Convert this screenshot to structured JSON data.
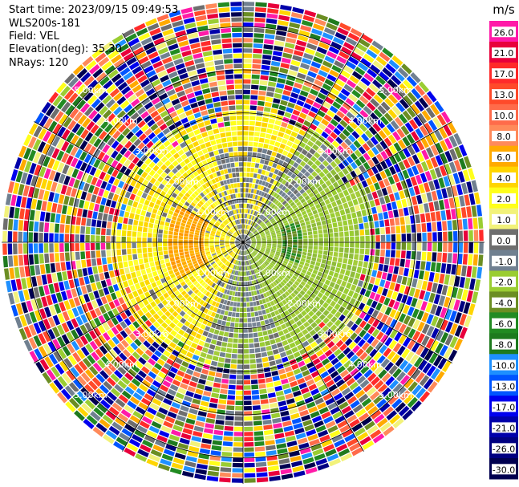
{
  "chart_data": {
    "type": "polar-ppi",
    "info": {
      "start_time": "Start time: 2023/09/15 09:49:53",
      "instrument": "WLS200s-181",
      "field": "Field: VEL",
      "elevation": "Elevation(deg): 35.30",
      "nrays": "NRays: 120"
    },
    "rings": [
      {
        "value": 1,
        "label": "1.00km"
      },
      {
        "value": 2,
        "label": "2.00km"
      },
      {
        "value": 3,
        "label": "3.00km"
      },
      {
        "value": 4,
        "label": "4.00km"
      },
      {
        "value": 5,
        "label": "5.00km"
      }
    ],
    "max_range_km": 5.6,
    "spokes_deg": [
      0,
      30,
      60,
      90,
      120,
      150,
      180,
      210,
      240,
      270,
      300,
      330
    ],
    "colorbar": {
      "unit": "m/s",
      "ticks": [
        "26.0",
        "21.0",
        "17.0",
        "13.0",
        "10.0",
        "8.0",
        "6.0",
        "4.0",
        "2.0",
        "1.0",
        "0.0",
        "-1.0",
        "-2.0",
        "-4.0",
        "-6.0",
        "-8.0",
        "-10.0",
        "-13.0",
        "-17.0",
        "-21.0",
        "-26.0",
        "-30.0"
      ],
      "colors": [
        "#ff1aa8",
        "#e8003b",
        "#ff2a2a",
        "#ff4a2a",
        "#ff6b4a",
        "#ff8a5a",
        "#ffaa00",
        "#ffd500",
        "#ffff1a",
        "#f2f27a",
        "#6e6e6e",
        "#708090",
        "#9acd32",
        "#6b8e23",
        "#228b22",
        "#1e7a1e",
        "#1e90ff",
        "#0055ff",
        "#0000ee",
        "#0000aa",
        "#000080",
        "#000050"
      ]
    }
  }
}
